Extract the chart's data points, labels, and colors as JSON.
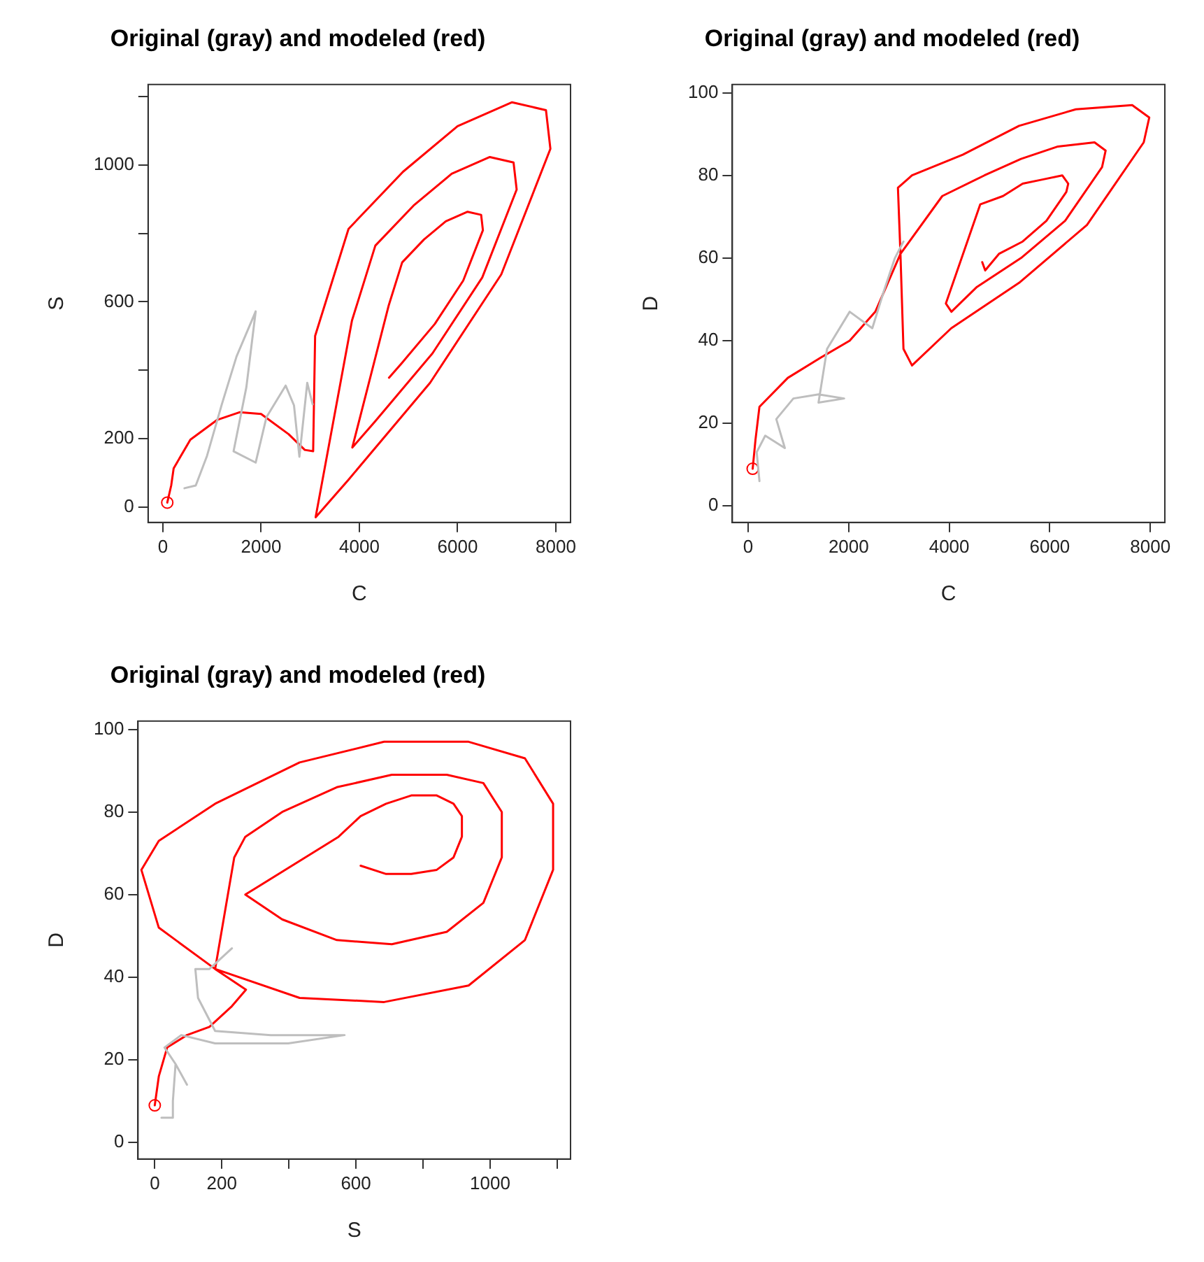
{
  "chart_data": [
    {
      "type": "line",
      "title": "Original (gray) and modeled (red)",
      "xlabel": "C",
      "ylabel": "S",
      "xlim": [
        -300,
        8300
      ],
      "ylim": [
        -45,
        1235
      ],
      "xticks": [
        0,
        2000,
        4000,
        6000,
        8000
      ],
      "yticks": [
        0,
        200,
        {
          "value": 400,
          "label": null
        },
        600,
        {
          "value": 800,
          "label": null
        },
        1000,
        {
          "value": 1200,
          "label": null
        }
      ],
      "series": [
        {
          "color": "#bebebe",
          "x": [
            440,
            670,
            900,
            1200,
            1500,
            1890,
            1700,
            1440,
            1890,
            2110,
            2500,
            2670,
            2780,
            2940,
            3050
          ],
          "values": [
            55,
            63,
            150,
            300,
            440,
            572,
            350,
            163,
            130,
            263,
            355,
            297,
            147,
            363,
            300
          ]
        },
        {
          "color": "#ff0000",
          "x": [
            90,
            170,
            220,
            560,
            1110,
            1560,
            2000,
            2560,
            2890,
            3060,
            3100,
            3780,
            4890,
            6000,
            7110,
            7800,
            7890,
            6890,
            5440,
            3780,
            3110,
            3850,
            4326,
            5103,
            5880,
            6657,
            7140,
            7203,
            6503,
            5488,
            4326,
            3857,
            4600,
            4872,
            5316,
            5760,
            6204,
            6480,
            6516,
            6116,
            5536,
            4872,
            4604
          ],
          "values": [
            13,
            63,
            113,
            197,
            255,
            277,
            272,
            213,
            167,
            163,
            500,
            813,
            980,
            1113,
            1183,
            1160,
            1047,
            680,
            363,
            80,
            -30,
            545,
            764,
            881,
            974,
            1023,
            1007,
            928,
            671,
            449,
            251,
            174,
            590,
            715,
            782,
            835,
            863,
            854,
            809,
            662,
            535,
            422,
            378
          ]
        },
        {
          "type": "scatter",
          "marker": "circle",
          "color": "#ff0000",
          "x": [
            90
          ],
          "values": [
            13
          ]
        }
      ]
    },
    {
      "type": "line",
      "title": "Original (gray) and modeled (red)",
      "xlabel": "C",
      "ylabel": "D",
      "xlim": [
        -315,
        8290
      ],
      "ylim": [
        -4,
        102
      ],
      "xticks": [
        0,
        2000,
        4000,
        6000,
        8000
      ],
      "yticks": [
        0,
        20,
        40,
        60,
        80,
        100
      ],
      "series": [
        {
          "color": "#bebebe",
          "x": [
            225,
            170,
            340,
            730,
            560,
            900,
            1400,
            1910,
            1400,
            1570,
            2020,
            2470,
            2700,
            2920,
            3090
          ],
          "values": [
            6,
            13,
            17,
            14,
            21,
            26,
            27,
            26,
            25,
            38,
            47,
            43,
            52,
            60,
            64
          ]
        },
        {
          "color": "#ff0000",
          "x": [
            90,
            146,
            225,
            790,
            1460,
            2020,
            2530,
            3030,
            2980,
            3260,
            4270,
            5390,
            6520,
            7640,
            7980,
            7870,
            6740,
            5390,
            4040,
            3260,
            3090,
            3030,
            3862,
            4700,
            5429,
            6163,
            6891,
            7112,
            7041,
            6306,
            5429,
            4551,
            4044,
            3934,
            4618,
            5070,
            5462,
            5857,
            6249,
            6368,
            6330,
            5934,
            5462,
            4989,
            4716,
            4657
          ],
          "values": [
            9,
            16,
            24,
            31,
            36,
            40,
            47,
            61,
            77,
            80,
            85,
            92,
            96,
            97,
            94,
            88,
            68,
            54,
            43,
            34,
            38,
            61,
            75,
            80,
            84,
            87,
            88,
            86,
            82,
            69,
            60,
            53,
            47,
            49,
            73,
            75,
            78,
            79,
            80,
            78,
            76,
            69,
            64,
            61,
            57,
            59
          ]
        },
        {
          "type": "scatter",
          "marker": "circle",
          "color": "#ff0000",
          "x": [
            90
          ],
          "values": [
            9
          ]
        }
      ]
    },
    {
      "type": "line",
      "title": "Original (gray) and modeled (red)",
      "xlabel": "S",
      "ylabel": "D",
      "xlim": [
        -50,
        1240
      ],
      "ylim": [
        -4,
        102
      ],
      "xticks": [
        0,
        200,
        {
          "value": 400,
          "label": null
        },
        600,
        {
          "value": 800,
          "label": null
        },
        1000,
        {
          "value": 1200,
          "label": null
        }
      ],
      "yticks": [
        0,
        20,
        40,
        60,
        80,
        100
      ],
      "series": [
        {
          "color": "#bebebe",
          "x": [
            20,
            54,
            54,
            62,
            96,
            62,
            29,
            79,
            180,
            398,
            566,
            346,
            180,
            129,
            121,
            163,
            230
          ],
          "values": [
            6,
            6,
            10,
            19,
            14,
            19,
            23,
            26,
            24,
            24,
            26,
            26,
            27,
            35,
            42,
            42,
            47
          ]
        },
        {
          "color": "#ff0000",
          "x": [
            0,
            12,
            37,
            96,
            163,
            230,
            272,
            180,
            12,
            -40,
            12,
            180,
            432,
            684,
            936,
            1104,
            1188,
            1188,
            1104,
            936,
            684,
            432,
            180,
            237,
            270,
            380,
            543,
            707,
            871,
            980,
            1035,
            1035,
            980,
            871,
            707,
            543,
            380,
            270,
            548,
            614,
            690,
            765,
            841,
            891,
            916,
            916,
            891,
            841,
            765,
            690,
            614
          ],
          "values": [
            9,
            16,
            23,
            26,
            28,
            33,
            37,
            42,
            52,
            66,
            73,
            82,
            92,
            97,
            97,
            93,
            82,
            66,
            49,
            38,
            34,
            35,
            42,
            69,
            74,
            80,
            86,
            89,
            89,
            87,
            80,
            69,
            58,
            51,
            48,
            49,
            54,
            60,
            74,
            79,
            82,
            84,
            84,
            82,
            79,
            74,
            69,
            66,
            65,
            65,
            67
          ]
        },
        {
          "type": "scatter",
          "marker": "circle",
          "color": "#ff0000",
          "x": [
            0
          ],
          "values": [
            9
          ]
        }
      ]
    }
  ]
}
